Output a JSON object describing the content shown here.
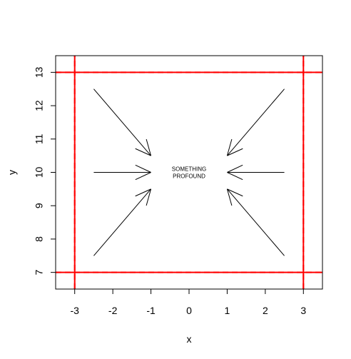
{
  "chart_data": {
    "type": "scatter",
    "title": "",
    "xlabel": "x",
    "ylabel": "y",
    "xlim": [
      -3.5,
      3.5
    ],
    "ylim": [
      6.5,
      13.5
    ],
    "x_ticks": [
      -3,
      -2,
      -1,
      0,
      1,
      2,
      3
    ],
    "y_ticks": [
      7,
      8,
      9,
      10,
      11,
      12,
      13
    ],
    "x_tick_labels": [
      "-3",
      "-2",
      "-1",
      "0",
      "1",
      "2",
      "3"
    ],
    "y_tick_labels": [
      "7",
      "8",
      "9",
      "10",
      "11",
      "12",
      "13"
    ],
    "grid": false,
    "arrows": [
      {
        "x0": -2.5,
        "y0": 12.5,
        "x1": -1.0,
        "y1": 10.5
      },
      {
        "x0": -2.5,
        "y0": 10.0,
        "x1": -1.0,
        "y1": 10.0
      },
      {
        "x0": -2.5,
        "y0": 7.5,
        "x1": -1.0,
        "y1": 9.5
      },
      {
        "x0": 2.5,
        "y0": 12.5,
        "x1": 1.0,
        "y1": 10.5
      },
      {
        "x0": 2.5,
        "y0": 10.0,
        "x1": 1.0,
        "y1": 10.0
      },
      {
        "x0": 2.5,
        "y0": 7.5,
        "x1": 1.0,
        "y1": 9.5
      }
    ],
    "reference_lines": {
      "color": "#ff0000",
      "solid_vertical": [
        -3,
        3
      ],
      "solid_horizontal": [
        7,
        13
      ],
      "dashed_vertical": [
        -3,
        3
      ],
      "dashed_horizontal": [
        7,
        13
      ]
    },
    "annotation": {
      "x": 0,
      "y": 10,
      "lines": [
        "SOMETHING",
        "PROFOUND"
      ]
    }
  }
}
